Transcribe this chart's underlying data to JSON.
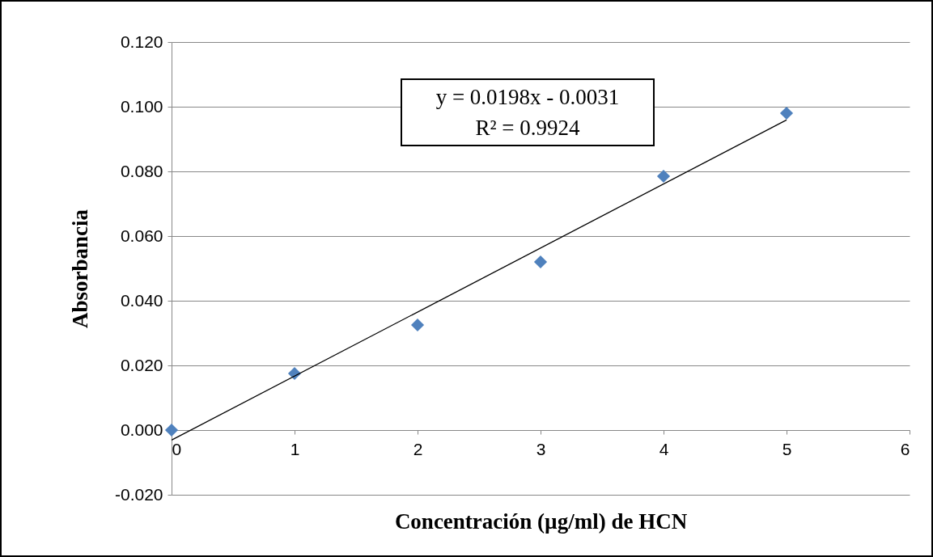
{
  "chart_data": {
    "type": "scatter",
    "xlabel": "Concentración (µg/ml) de HCN",
    "ylabel": "Absorbancia",
    "xlim": [
      0,
      6
    ],
    "xticks": [
      0,
      1,
      2,
      3,
      4,
      5,
      6
    ],
    "ylim": [
      -0.02,
      0.12
    ],
    "yticks": [
      {
        "value": -0.02,
        "label": "-0.020"
      },
      {
        "value": 0,
        "label": "0.000"
      },
      {
        "value": 0.02,
        "label": "0.020"
      },
      {
        "value": 0.04,
        "label": "0.040"
      },
      {
        "value": 0.06,
        "label": "0.060"
      },
      {
        "value": 0.08,
        "label": "0.080"
      },
      {
        "value": 0.1,
        "label": "0.100"
      },
      {
        "value": 0.12,
        "label": "0.120"
      }
    ],
    "grid": "y",
    "series": [
      {
        "color": "#4f81bd",
        "marker": "diamond",
        "x": [
          0,
          1,
          2,
          3,
          4,
          5
        ],
        "values": [
          0,
          0.0175,
          0.0325,
          0.052,
          0.0785,
          0.098
        ]
      },
      {
        "type": "line",
        "color": "#000000",
        "marker": "none",
        "x": [
          0,
          5
        ],
        "values": [
          -0.0031,
          0.0959
        ]
      }
    ],
    "annotations": [
      "y = 0.0198x - 0.0031",
      "R² = 0.9924"
    ]
  }
}
